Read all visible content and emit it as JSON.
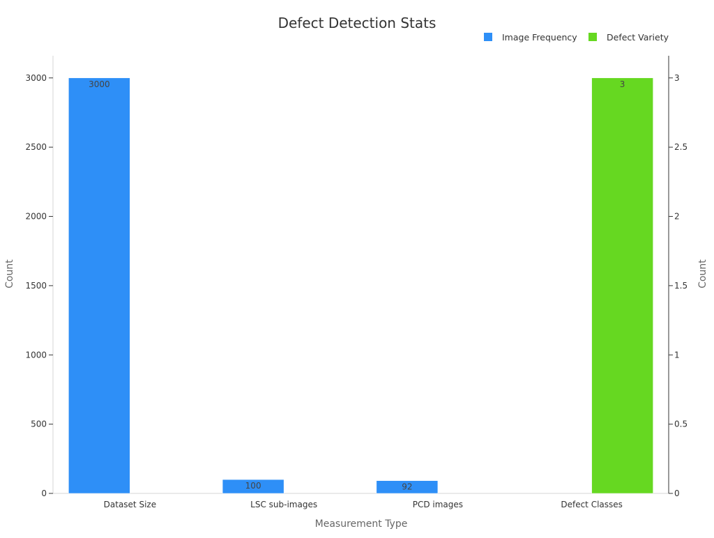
{
  "chart_data": {
    "type": "bar",
    "title": "Defect Detection Stats",
    "xlabel": "Measurement Type",
    "ylabel": "Count",
    "y2label": "Count",
    "categories": [
      "Dataset Size",
      "LSC sub-images",
      "PCD images",
      "Defect Classes"
    ],
    "series": [
      {
        "name": "Image Frequency",
        "axis": "left",
        "color": "#2E8FF7",
        "values": [
          3000,
          100,
          92,
          null
        ],
        "labels": [
          "3000",
          "100",
          "92",
          ""
        ]
      },
      {
        "name": "Defect Variety",
        "axis": "right",
        "color": "#66D821",
        "values": [
          null,
          null,
          null,
          3
        ],
        "labels": [
          "",
          "",
          "",
          "3"
        ]
      }
    ],
    "ylim": [
      0,
      3160
    ],
    "yticks": [
      0,
      500,
      1000,
      1500,
      2000,
      2500,
      3000
    ],
    "ytick_labels": [
      "0",
      "500",
      "1000",
      "1500",
      "2000",
      "2500",
      "3000"
    ],
    "y2lim": [
      0,
      3.16
    ],
    "y2ticks": [
      0,
      0.5,
      1,
      1.5,
      2,
      2.5,
      3
    ],
    "y2tick_labels": [
      "0",
      "0.5",
      "1",
      "1.5",
      "2",
      "2.5",
      "3"
    ],
    "legend": "top-right",
    "grid": false
  }
}
